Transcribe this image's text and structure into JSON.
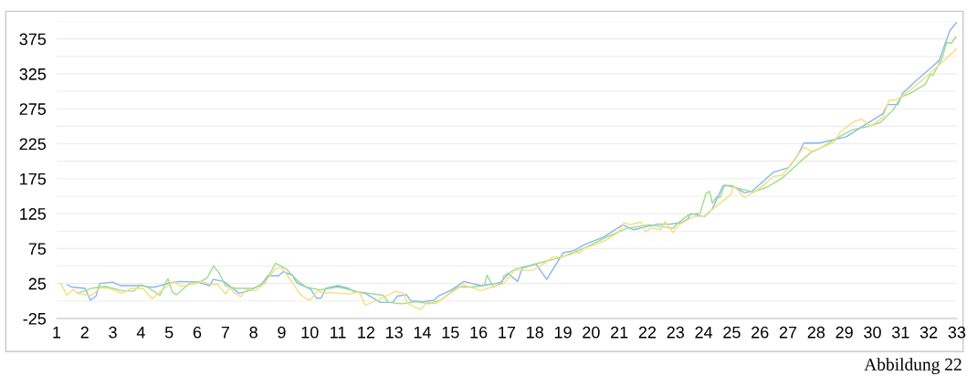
{
  "chart_data": {
    "type": "line",
    "xlim": [
      1,
      33
    ],
    "xticks": [
      1,
      2,
      3,
      4,
      5,
      6,
      7,
      8,
      9,
      10,
      11,
      12,
      13,
      14,
      15,
      16,
      17,
      18,
      19,
      20,
      21,
      22,
      23,
      24,
      25,
      26,
      27,
      28,
      29,
      30,
      31,
      32,
      33
    ],
    "ylim": [
      -25,
      400
    ],
    "yticks": [
      -25,
      {
        "value": 0,
        "label": null
      },
      25,
      {
        "value": 50,
        "label": null
      },
      75,
      {
        "value": 100,
        "label": null
      },
      125,
      {
        "value": 150,
        "label": null
      },
      175,
      {
        "value": 200,
        "label": null
      },
      225,
      {
        "value": 250,
        "label": null
      },
      275,
      {
        "value": 300,
        "label": null
      },
      325,
      {
        "value": 350,
        "label": null
      },
      375,
      {
        "value": 400,
        "label": null
      }
    ],
    "grid": "y",
    "legend": false,
    "marker": "none",
    "line_style": "solid",
    "annotations": [
      "Abbildung 22"
    ],
    "series": [
      {
        "color": "#8ab4f0",
        "x": [
          1.39,
          1.53,
          2.02,
          2.2,
          2.4,
          2.54,
          2.99,
          3.26,
          3.53,
          4.02,
          4.29,
          4.5,
          5.05,
          5.37,
          6.02,
          6.45,
          6.56,
          6.94,
          7.21,
          7.48,
          7.86,
          8.29,
          8.51,
          8.89,
          9.05,
          9.38,
          9.54,
          10.03,
          10.24,
          10.4,
          10.57,
          11.0,
          11.38,
          11.6,
          11.97,
          12.51,
          12.95,
          13.11,
          13.44,
          13.6,
          14.03,
          14.41,
          14.57,
          15.0,
          15.49,
          15.76,
          16.09,
          16.63,
          16.79,
          17.06,
          17.39,
          17.55,
          18.04,
          18.42,
          19.01,
          19.39,
          19.77,
          20.47,
          21.12,
          21.5,
          21.93,
          22.36,
          22.8,
          23.2,
          23.43,
          23.53,
          24.03,
          24.3,
          24.69,
          25.0,
          25.45,
          25.72,
          26.47,
          27.02,
          27.34,
          27.56,
          28.1,
          29.07,
          29.5,
          30.37,
          30.53,
          30.9,
          31.07,
          31.55,
          32.37,
          32.75,
          33
        ],
        "values": [
          23,
          20,
          18,
          1,
          7,
          25,
          27,
          22,
          22,
          22,
          20,
          20,
          26,
          28,
          27,
          22,
          31,
          28,
          20,
          11,
          15,
          24,
          36,
          36,
          42,
          37,
          26,
          17,
          4,
          4,
          18,
          22,
          18,
          13,
          11,
          -2,
          -2,
          7,
          9,
          0,
          -1,
          1,
          7,
          15,
          28,
          25,
          22,
          25,
          27,
          39,
          28,
          47,
          53,
          31,
          69,
          72,
          81,
          92,
          109,
          102,
          106,
          110,
          110,
          112,
          117,
          125,
          121,
          131,
          165,
          165,
          155,
          157,
          184,
          191,
          208,
          226,
          226,
          235,
          246,
          268,
          281,
          281,
          297,
          315,
          344,
          387,
          399
        ]
      },
      {
        "color": "#9bde8a",
        "x": [
          1.75,
          2.23,
          2.72,
          3.32,
          3.75,
          3.97,
          4.18,
          4.67,
          4.96,
          5.11,
          5.26,
          5.75,
          6.13,
          6.35,
          6.58,
          6.78,
          7.0,
          7.37,
          7.97,
          8.4,
          8.78,
          9.16,
          9.54,
          9.86,
          10.35,
          11.0,
          11.76,
          12.62,
          12.79,
          13.27,
          13.81,
          14.24,
          14.68,
          15.27,
          15.76,
          16.2,
          16.3,
          16.52,
          16.84,
          16.9,
          17.33,
          17.93,
          18.79,
          19.33,
          19.87,
          20.58,
          21.28,
          22.04,
          22.25,
          22.91,
          23.07,
          23.45,
          23.88,
          24.08,
          24.21,
          24.31,
          24.48,
          24.58,
          24.74,
          24.96,
          25.77,
          26.26,
          26.8,
          27.45,
          27.83,
          28.21,
          28.64,
          29.29,
          29.78,
          30.27,
          30.75,
          31.02,
          31.29,
          31.88,
          32.05,
          32.15,
          32.48,
          32.64,
          32.81,
          32.97
        ],
        "values": [
          11,
          18,
          21,
          15,
          14,
          23,
          21,
          8,
          32,
          13,
          9,
          26,
          28,
          33,
          50,
          40,
          22,
          18,
          18,
          25,
          54,
          46,
          30,
          20,
          16,
          20,
          13,
          8,
          -2,
          -4,
          -1,
          -4,
          2,
          20,
          20,
          22,
          37,
          20,
          26,
          36,
          46,
          52,
          61,
          68,
          78,
          92,
          104,
          109,
          108,
          104,
          111,
          123,
          126,
          154,
          157,
          140,
          150,
          148,
          166,
          164,
          156,
          163,
          176,
          200,
          213,
          220,
          231,
          245,
          249,
          255,
          274,
          292,
          296,
          310,
          324,
          323,
          348,
          370,
          369,
          378
        ]
      },
      {
        "color": "#f3de7f",
        "x": [
          1.15,
          1.37,
          1.58,
          1.82,
          2.23,
          2.56,
          2.88,
          3.32,
          3.64,
          4.07,
          4.4,
          4.61,
          4.89,
          5.16,
          5.42,
          5.91,
          6.13,
          6.45,
          6.72,
          7.0,
          7.16,
          7.27,
          7.54,
          7.75,
          8.08,
          8.35,
          8.78,
          9.0,
          9.32,
          9.65,
          9.92,
          10.03,
          10.3,
          10.46,
          10.78,
          11.43,
          11.76,
          11.97,
          12.51,
          13.05,
          13.33,
          13.49,
          13.92,
          14.19,
          14.46,
          15.0,
          15.44,
          16.09,
          16.47,
          16.9,
          17.28,
          17.93,
          18.42,
          18.63,
          19.0,
          19.33,
          19.6,
          19.77,
          20.1,
          20.53,
          20.96,
          21.17,
          21.39,
          21.77,
          21.93,
          22.15,
          22.47,
          22.63,
          22.91,
          23.12,
          23.6,
          24.03,
          24.96,
          25.07,
          25.45,
          25.83,
          26.2,
          26.47,
          26.8,
          27.56,
          27.88,
          28.21,
          28.64,
          28.86,
          29.18,
          29.35,
          29.62,
          29.94,
          30.37,
          30.59,
          30.86,
          31.35,
          32.0,
          33
        ],
        "values": [
          25,
          8,
          16,
          10,
          8,
          19,
          18,
          11,
          18,
          18,
          3,
          11,
          20,
          28,
          21,
          24,
          28,
          24,
          24,
          10,
          20,
          13,
          6,
          16,
          15,
          24,
          46,
          48,
          30,
          10,
          2,
          2,
          15,
          11,
          12,
          10,
          13,
          -6,
          3,
          14,
          11,
          -4,
          -12,
          -2,
          -4,
          11,
          23,
          15,
          20,
          25,
          44,
          44,
          56,
          63,
          63,
          70,
          69,
          76,
          80,
          87,
          98,
          112,
          109,
          113,
          99,
          105,
          102,
          114,
          98,
          109,
          120,
          122,
          152,
          165,
          148,
          157,
          168,
          178,
          180,
          220,
          213,
          220,
          227,
          242,
          252,
          257,
          260,
          250,
          263,
          287,
          288,
          302,
          324,
          361
        ]
      }
    ]
  }
}
